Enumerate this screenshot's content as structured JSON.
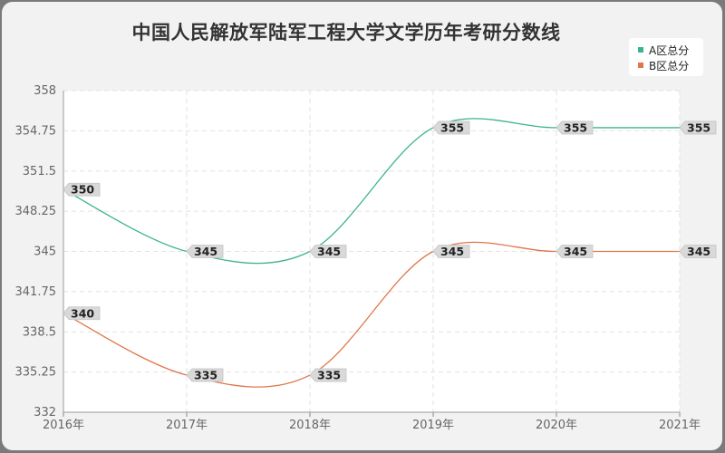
{
  "chart_data": {
    "type": "line",
    "title": "中国人民解放军陆军工程大学文学历年考研分数线",
    "x": [
      "2016年",
      "2017年",
      "2018年",
      "2019年",
      "2020年",
      "2021年"
    ],
    "ylim": [
      332,
      358
    ],
    "yticks": [
      "358",
      "354.75",
      "351.5",
      "348.25",
      "345",
      "341.75",
      "338.5",
      "335.25",
      "332"
    ],
    "grid": true,
    "legend_position": "top-right",
    "series": [
      {
        "name": "A区总分",
        "color": "#3bb38e",
        "values": [
          350,
          345,
          345,
          355,
          355,
          355
        ]
      },
      {
        "name": "B区总分",
        "color": "#e0764a",
        "values": [
          340,
          335,
          335,
          345,
          345,
          345
        ]
      }
    ]
  }
}
